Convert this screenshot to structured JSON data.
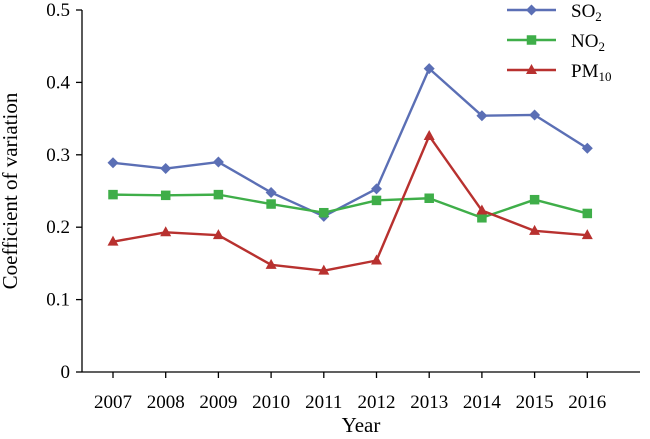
{
  "chart_data": {
    "type": "line",
    "title": "",
    "xlabel": "Year",
    "ylabel": "Coefficient of variation",
    "categories": [
      "2007",
      "2008",
      "2009",
      "2010",
      "2011",
      "2012",
      "2013",
      "2014",
      "2015",
      "2016"
    ],
    "ylim": [
      0,
      0.5
    ],
    "yticks": [
      "0",
      "0.1",
      "0.2",
      "0.3",
      "0.4",
      "0.5"
    ],
    "grid": false,
    "legend_position": "top-right",
    "series": [
      {
        "name": "SO2",
        "name_main": "SO",
        "name_sub": "2",
        "color": "#5b6fb5",
        "marker": "diamond",
        "values": [
          0.289,
          0.281,
          0.29,
          0.248,
          0.215,
          0.253,
          0.419,
          0.354,
          0.355,
          0.309
        ]
      },
      {
        "name": "NO2",
        "name_main": "NO",
        "name_sub": "2",
        "color": "#3fae49",
        "marker": "square",
        "values": [
          0.245,
          0.244,
          0.245,
          0.232,
          0.22,
          0.237,
          0.24,
          0.213,
          0.238,
          0.219
        ]
      },
      {
        "name": "PM10",
        "name_main": "PM",
        "name_sub": "10",
        "color": "#b8312f",
        "marker": "triangle",
        "values": [
          0.18,
          0.193,
          0.189,
          0.148,
          0.14,
          0.154,
          0.326,
          0.223,
          0.195,
          0.189
        ]
      }
    ]
  }
}
